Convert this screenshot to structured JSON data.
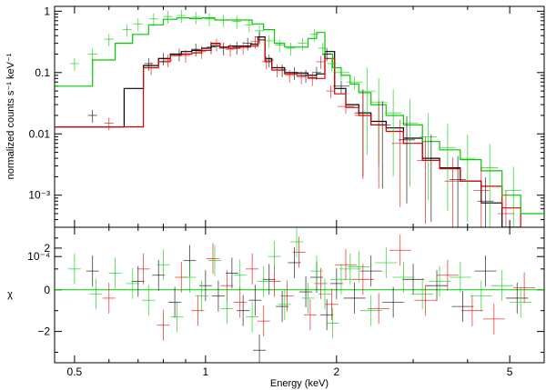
{
  "chart_data": [
    {
      "type": "line",
      "panel": "spectrum",
      "xscale": "log",
      "yscale": "log",
      "xlim": [
        0.45,
        6.0
      ],
      "ylim": [
        0.0003,
        1.2
      ],
      "xlabel": "",
      "ylabel": "normalized counts s⁻¹ keV⁻¹",
      "y_ticks": [
        {
          "value": 1,
          "label": "1"
        },
        {
          "value": 0.1,
          "label": "0.1"
        },
        {
          "value": 0.01,
          "label": "0.01"
        },
        {
          "value": 0.001,
          "label": "10⁻³"
        },
        {
          "value": 0.0001,
          "label": "10⁻⁴"
        }
      ],
      "series": [
        {
          "color": "#000000",
          "edges": [
            0.45,
            0.65,
            0.72,
            0.78,
            0.83,
            0.88,
            0.93,
            0.98,
            1.03,
            1.08,
            1.13,
            1.2,
            1.27,
            1.32,
            1.37,
            1.42,
            1.52,
            1.62,
            1.72,
            1.8,
            1.88,
            1.98,
            2.1,
            2.25,
            2.4,
            2.6,
            2.85,
            3.15,
            3.45,
            3.85,
            4.3,
            4.8,
            5.3,
            6.0
          ],
          "values": [
            0.013,
            0.055,
            0.13,
            0.17,
            0.2,
            0.22,
            0.23,
            0.25,
            0.27,
            0.26,
            0.27,
            0.27,
            0.29,
            0.38,
            0.17,
            0.12,
            0.1,
            0.098,
            0.09,
            0.095,
            0.22,
            0.055,
            0.03,
            0.022,
            0.016,
            0.0125,
            0.0085,
            0.004,
            0.0028,
            0.0017,
            0.00075,
            0.0003,
            0.00022,
            0.00022
          ]
        },
        {
          "color": "#e00000",
          "edges": [
            0.45,
            0.65,
            0.72,
            0.78,
            0.83,
            0.88,
            0.93,
            0.98,
            1.03,
            1.08,
            1.13,
            1.2,
            1.27,
            1.32,
            1.37,
            1.42,
            1.52,
            1.62,
            1.72,
            1.8,
            1.88,
            1.98,
            2.1,
            2.25,
            2.4,
            2.6,
            2.85,
            3.15,
            3.45,
            3.85,
            4.3,
            4.8,
            5.3,
            6.0
          ],
          "values": [
            0.013,
            0.013,
            0.12,
            0.15,
            0.19,
            0.2,
            0.21,
            0.23,
            0.3,
            0.26,
            0.25,
            0.26,
            0.27,
            0.34,
            0.15,
            0.11,
            0.095,
            0.09,
            0.082,
            0.08,
            0.17,
            0.045,
            0.027,
            0.02,
            0.014,
            0.011,
            0.007,
            0.0037,
            0.0027,
            0.0017,
            0.0014,
            0.00062,
            0.00026,
            0.00026
          ]
        },
        {
          "color": "#00cc00",
          "edges": [
            0.45,
            0.55,
            0.62,
            0.68,
            0.74,
            0.8,
            0.86,
            0.92,
            0.98,
            1.05,
            1.12,
            1.2,
            1.28,
            1.36,
            1.44,
            1.52,
            1.62,
            1.72,
            1.8,
            1.88,
            1.96,
            2.05,
            2.15,
            2.25,
            2.4,
            2.6,
            2.85,
            3.15,
            3.45,
            3.85,
            4.3,
            4.8,
            5.3,
            6.0
          ],
          "values": [
            0.06,
            0.16,
            0.3,
            0.42,
            0.6,
            0.74,
            0.78,
            0.76,
            0.78,
            0.72,
            0.72,
            0.72,
            0.62,
            0.5,
            0.3,
            0.26,
            0.26,
            0.36,
            0.45,
            0.2,
            0.12,
            0.09,
            0.065,
            0.047,
            0.03,
            0.02,
            0.014,
            0.0075,
            0.0055,
            0.0038,
            0.0025,
            0.001,
            0.0005,
            0.0005
          ]
        }
      ],
      "data_points": [
        {
          "color": "#00cc00",
          "x": [
            0.5,
            0.55,
            0.6,
            0.66,
            0.7,
            0.76,
            0.82,
            0.88,
            0.95,
            1.02,
            1.1,
            1.18,
            1.26,
            1.33,
            1.4,
            1.48,
            1.57,
            1.67,
            1.78,
            1.86,
            1.95,
            2.05,
            2.2,
            2.35,
            2.5,
            2.7,
            2.95,
            3.25,
            3.6,
            4.0,
            4.5,
            5.1
          ],
          "y": [
            0.14,
            0.2,
            0.35,
            0.5,
            0.62,
            0.75,
            0.82,
            0.85,
            0.8,
            0.75,
            0.72,
            0.68,
            0.6,
            0.48,
            0.33,
            0.28,
            0.25,
            0.3,
            0.42,
            0.25,
            0.14,
            0.1,
            0.07,
            0.05,
            0.033,
            0.022,
            0.015,
            0.009,
            0.006,
            0.004,
            0.0028,
            0.0012
          ]
        },
        {
          "color": "#000000",
          "x": [
            0.55,
            0.74,
            0.8,
            0.87,
            0.95,
            1.03,
            1.1,
            1.18,
            1.25,
            1.33,
            1.4,
            1.5,
            1.6,
            1.7,
            1.8,
            1.9,
            2.05,
            2.3,
            2.55,
            2.9,
            3.3,
            3.8,
            4.4
          ],
          "y": [
            0.02,
            0.14,
            0.17,
            0.2,
            0.24,
            0.26,
            0.25,
            0.26,
            0.3,
            0.38,
            0.16,
            0.11,
            0.1,
            0.09,
            0.1,
            0.2,
            0.06,
            0.022,
            0.014,
            0.008,
            0.004,
            0.0018,
            0.0008
          ]
        },
        {
          "color": "#e00000",
          "x": [
            0.6,
            0.75,
            0.82,
            0.9,
            0.98,
            1.06,
            1.14,
            1.22,
            1.3,
            1.38,
            1.46,
            1.56,
            1.66,
            1.76,
            1.84,
            1.94,
            2.1,
            2.3,
            2.5,
            2.8,
            3.2,
            3.7,
            4.3,
            4.9
          ],
          "y": [
            0.015,
            0.12,
            0.16,
            0.19,
            0.22,
            0.29,
            0.24,
            0.26,
            0.32,
            0.15,
            0.11,
            0.09,
            0.085,
            0.08,
            0.15,
            0.05,
            0.028,
            0.02,
            0.014,
            0.007,
            0.0037,
            0.0017,
            0.0012,
            0.0005
          ]
        }
      ]
    },
    {
      "type": "scatter",
      "panel": "residuals",
      "xscale": "log",
      "xlim": [
        0.45,
        6.0
      ],
      "ylim": [
        -3.5,
        3.0
      ],
      "xlabel": "Energy (keV)",
      "ylabel": "χ",
      "x_ticks": [
        {
          "value": 0.5,
          "label": "0.5"
        },
        {
          "value": 1,
          "label": "1"
        },
        {
          "value": 2,
          "label": "2"
        },
        {
          "value": 5,
          "label": "5"
        }
      ],
      "y_ticks": [
        {
          "value": 2,
          "label": "2"
        },
        {
          "value": 0,
          "label": "0"
        },
        {
          "value": -2,
          "label": "−2"
        }
      ],
      "reference_line": {
        "y": 0,
        "color": "#00cc00"
      },
      "series": [
        {
          "color": "#000000",
          "x": [
            0.55,
            0.7,
            0.78,
            0.85,
            0.92,
            1.0,
            1.07,
            1.15,
            1.22,
            1.3,
            1.33,
            1.4,
            1.5,
            1.6,
            1.7,
            1.8,
            1.9,
            2.0,
            2.2,
            2.4,
            2.7,
            3.0,
            3.4,
            3.9,
            4.4,
            5.2
          ],
          "y": [
            0.9,
            0.4,
            0.7,
            -0.6,
            1.4,
            0.2,
            -0.3,
            0.8,
            -1.0,
            -0.5,
            -2.9,
            0.5,
            -0.8,
            1.3,
            -0.1,
            0.6,
            -1.2,
            0.3,
            -0.4,
            0.9,
            -0.6,
            0.5,
            0.2,
            -0.8,
            0.9,
            -0.4
          ]
        },
        {
          "color": "#e00000",
          "x": [
            0.6,
            0.72,
            0.8,
            0.88,
            0.96,
            1.04,
            1.12,
            1.2,
            1.28,
            1.36,
            1.44,
            1.54,
            1.64,
            1.74,
            1.84,
            1.95,
            2.1,
            2.3,
            2.5,
            2.8,
            3.2,
            3.6,
            4.1,
            4.6,
            5.4
          ],
          "y": [
            -0.4,
            1.0,
            -1.7,
            0.6,
            -1.0,
            1.5,
            0.2,
            -0.6,
            1.0,
            -1.5,
            0.4,
            -0.3,
            1.8,
            -1.2,
            0.3,
            -0.7,
            1.2,
            0.5,
            -0.9,
            1.9,
            -0.5,
            0.7,
            -1.0,
            -1.4,
            0.1
          ]
        },
        {
          "color": "#00cc00",
          "x": [
            0.5,
            0.56,
            0.62,
            0.68,
            0.74,
            0.8,
            0.86,
            0.92,
            0.98,
            1.05,
            1.12,
            1.2,
            1.28,
            1.36,
            1.44,
            1.52,
            1.62,
            1.72,
            1.8,
            1.88,
            1.96,
            2.05,
            2.15,
            2.25,
            2.4,
            2.6,
            2.85,
            3.15,
            3.45,
            3.85,
            4.3,
            4.8,
            5.3
          ],
          "y": [
            1.0,
            -0.2,
            0.8,
            0.3,
            -0.5,
            1.2,
            -1.3,
            0.6,
            -0.3,
            1.4,
            -0.9,
            0.7,
            -1.3,
            0.4,
            1.6,
            -0.7,
            2.3,
            -0.4,
            0.9,
            -0.2,
            -1.6,
            0.5,
            1.0,
            1.1,
            -1.0,
            1.3,
            0.6,
            -0.2,
            0.4,
            0.6,
            -0.3,
            0.2,
            -0.6
          ]
        }
      ]
    }
  ]
}
